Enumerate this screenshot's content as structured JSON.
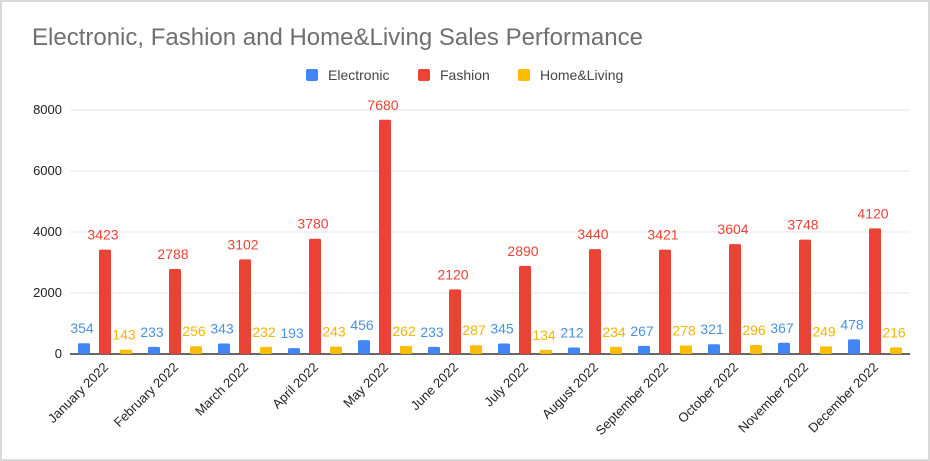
{
  "chart_data": {
    "type": "bar",
    "title": "Electronic, Fashion and Home&Living Sales Performance",
    "xlabel": "",
    "ylabel": "",
    "ylim": [
      0,
      8000
    ],
    "yticks": [
      0,
      2000,
      4000,
      6000,
      8000
    ],
    "grid": true,
    "legend_position": "top",
    "categories": [
      "January 2022",
      "February 2022",
      "March 2022",
      "April 2022",
      "May 2022",
      "June 2022",
      "July 2022",
      "August 2022",
      "September 2022",
      "October 2022",
      "November 2022",
      "December 2022"
    ],
    "series": [
      {
        "name": "Electronic",
        "color": "#4285f4",
        "label_color": "#4a90e2",
        "values": [
          354,
          233,
          343,
          193,
          456,
          233,
          345,
          212,
          267,
          321,
          367,
          478
        ]
      },
      {
        "name": "Fashion",
        "color": "#ea4335",
        "label_color": "#ea4335",
        "values": [
          3423,
          2788,
          3102,
          3780,
          7680,
          2120,
          2890,
          3440,
          3421,
          3604,
          3748,
          4120
        ]
      },
      {
        "name": "Home&Living",
        "color": "#fbbc04",
        "label_color": "#f4b400",
        "values": [
          143,
          256,
          232,
          243,
          262,
          287,
          134,
          234,
          278,
          296,
          249,
          216
        ]
      }
    ]
  }
}
